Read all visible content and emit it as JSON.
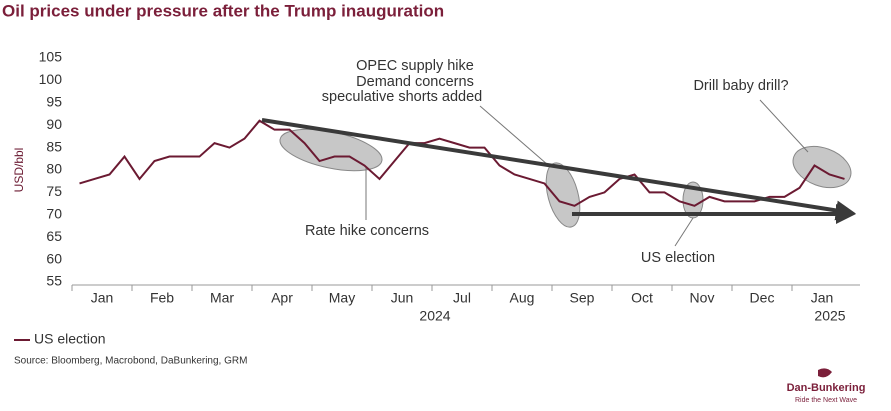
{
  "chart_data": {
    "type": "line",
    "title": "Oil prices under pressure after the Trump inauguration",
    "y_label": "USD/bbl",
    "categories": [
      null,
      "Jan",
      null,
      null,
      null,
      "Feb",
      null,
      null,
      null,
      "Mar",
      null,
      null,
      null,
      "Apr",
      null,
      null,
      null,
      "May",
      null,
      null,
      null,
      "Jun",
      null,
      null,
      null,
      "Jul",
      null,
      null,
      null,
      "Aug",
      null,
      null,
      null,
      "Sep",
      null,
      null,
      null,
      "Oct",
      null,
      null,
      null,
      "Nov",
      null,
      null,
      null,
      "Dec",
      null,
      null,
      null,
      "Jan",
      null,
      null
    ],
    "year_labels": [
      "2024",
      "2025"
    ],
    "series": [
      {
        "name": "US election",
        "color": "#6b1a32",
        "values": [
          77,
          78,
          79,
          83,
          78,
          82,
          83,
          83,
          83,
          86,
          85,
          87,
          91,
          89,
          89,
          86,
          82,
          83,
          83,
          81,
          78,
          82,
          86,
          86,
          87,
          86,
          85,
          85,
          81,
          79,
          78,
          77,
          73,
          72,
          74,
          75,
          78,
          79,
          75,
          75,
          73,
          72,
          74,
          73,
          73,
          73,
          74,
          74,
          76,
          81,
          79,
          78
        ]
      }
    ],
    "ylim": [
      55,
      105
    ],
    "yticks": [
      55,
      60,
      65,
      70,
      75,
      80,
      85,
      90,
      95,
      100,
      105
    ],
    "grid": false,
    "annotations": [
      "OPEC supply hike",
      "Demand concerns",
      "speculative shorts added",
      "Drill baby drill?",
      "Rate hike concerns",
      "US election"
    ],
    "source": "Source: Bloomberg, Macrobond, DaBunkering, GRM",
    "logo": {
      "name": "Dan-Bunkering",
      "tagline": "Ride the Next Wave"
    }
  }
}
